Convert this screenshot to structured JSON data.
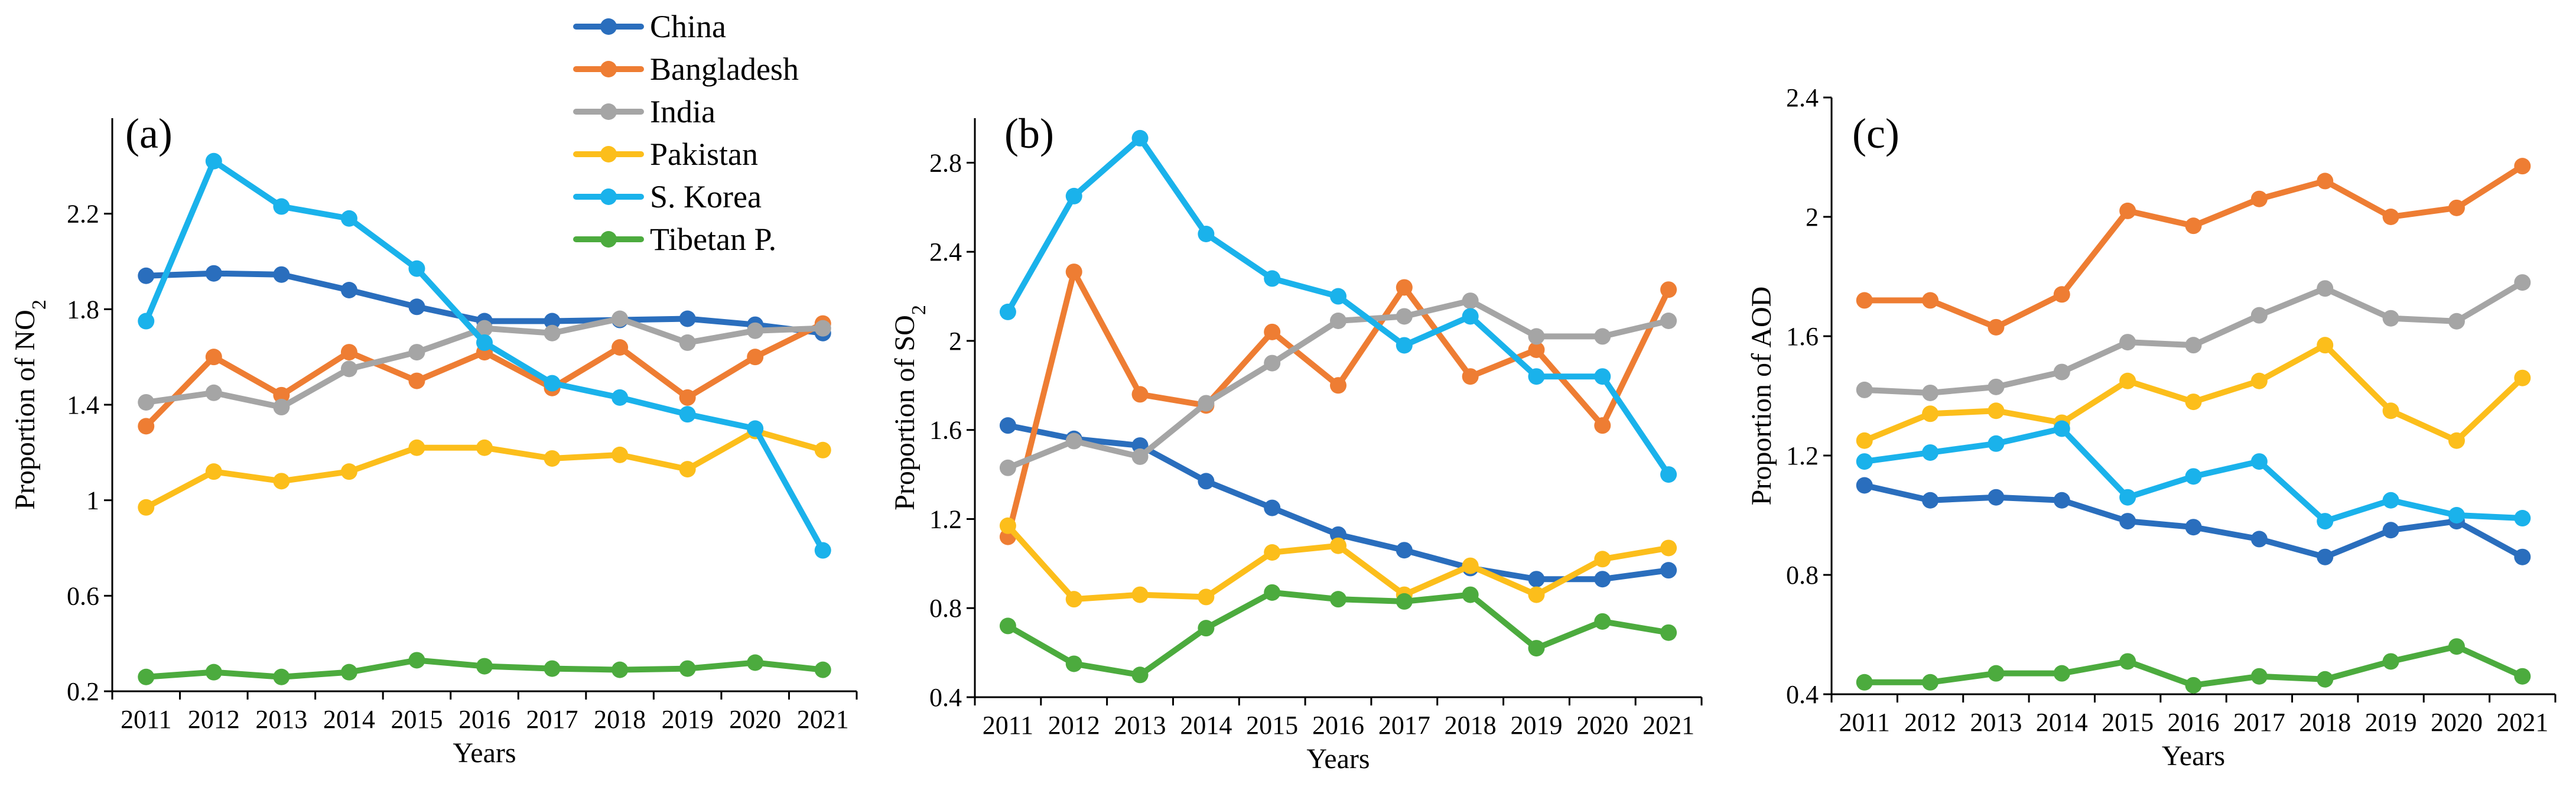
{
  "legend": {
    "placement": "top-center",
    "entries": [
      {
        "name": "China",
        "color": "#2a6ebd"
      },
      {
        "name": "Bangladesh",
        "color": "#ee7d33"
      },
      {
        "name": "India",
        "color": "#a5a5a5"
      },
      {
        "name": "Pakistan",
        "color": "#fcbe1b"
      },
      {
        "name": "S. Korea",
        "color": "#1ab2eb"
      },
      {
        "name": "Tibetan P.",
        "color": "#4cab3e"
      }
    ]
  },
  "chart_data": [
    {
      "type": "line",
      "panel_label": "(a)",
      "xlabel": "Years",
      "ylabel": "Proportion of NO",
      "ylabel_sub": "2",
      "ylim": [
        0.2,
        2.6
      ],
      "yticks": [
        0.2,
        0.6,
        1,
        1.4,
        1.8,
        2.2
      ],
      "ytick_labels": [
        "0.2",
        "0.6",
        "1",
        "1.4",
        "1.8",
        "2.2"
      ],
      "categories": [
        "2011",
        "2012",
        "2013",
        "2014",
        "2015",
        "2016",
        "2017",
        "2018",
        "2019",
        "2020",
        "2021"
      ],
      "series": [
        {
          "name": "China",
          "values": [
            1.94,
            1.95,
            1.945,
            1.88,
            1.81,
            1.75,
            1.75,
            1.755,
            1.76,
            1.735,
            1.7
          ]
        },
        {
          "name": "Bangladesh",
          "values": [
            1.31,
            1.6,
            1.44,
            1.62,
            1.5,
            1.62,
            1.47,
            1.64,
            1.43,
            1.6,
            1.74
          ]
        },
        {
          "name": "India",
          "values": [
            1.41,
            1.45,
            1.39,
            1.55,
            1.62,
            1.72,
            1.7,
            1.76,
            1.66,
            1.71,
            1.72
          ]
        },
        {
          "name": "Pakistan",
          "values": [
            0.97,
            1.12,
            1.08,
            1.12,
            1.22,
            1.22,
            1.175,
            1.19,
            1.13,
            1.29,
            1.21
          ]
        },
        {
          "name": "S. Korea",
          "values": [
            1.75,
            2.42,
            2.23,
            2.18,
            1.97,
            1.66,
            1.49,
            1.43,
            1.36,
            1.3,
            0.79
          ]
        },
        {
          "name": "Tibetan P.",
          "values": [
            0.26,
            0.28,
            0.26,
            0.28,
            0.33,
            0.305,
            0.295,
            0.29,
            0.295,
            0.32,
            0.29
          ]
        }
      ]
    },
    {
      "type": "line",
      "panel_label": "(b)",
      "xlabel": "Years",
      "ylabel": "Proportion of SO",
      "ylabel_sub": "2",
      "ylim": [
        0.4,
        3.0
      ],
      "yticks": [
        0.4,
        0.8,
        1.2,
        1.6,
        2.0,
        2.4,
        2.8
      ],
      "ytick_labels": [
        "0.4",
        "0.8",
        "1.2",
        "1.6",
        "2",
        "2.4",
        "2.8"
      ],
      "categories": [
        "2011",
        "2012",
        "2013",
        "2014",
        "2015",
        "2016",
        "2017",
        "2018",
        "2019",
        "2020",
        "2021"
      ],
      "series": [
        {
          "name": "China",
          "values": [
            1.62,
            1.56,
            1.53,
            1.37,
            1.25,
            1.13,
            1.06,
            0.98,
            0.93,
            0.93,
            0.97
          ]
        },
        {
          "name": "Bangladesh",
          "values": [
            1.12,
            2.31,
            1.76,
            1.71,
            2.04,
            1.8,
            2.24,
            1.84,
            1.96,
            1.62,
            2.23
          ]
        },
        {
          "name": "India",
          "values": [
            1.43,
            1.55,
            1.48,
            1.72,
            1.9,
            2.09,
            2.11,
            2.18,
            2.02,
            2.02,
            2.09
          ]
        },
        {
          "name": "Pakistan",
          "values": [
            1.17,
            0.84,
            0.86,
            0.85,
            1.05,
            1.08,
            0.86,
            0.99,
            0.86,
            1.02,
            1.07
          ]
        },
        {
          "name": "S. Korea",
          "values": [
            2.13,
            2.65,
            2.91,
            2.48,
            2.28,
            2.2,
            1.98,
            2.11,
            1.84,
            1.84,
            1.4
          ]
        },
        {
          "name": "Tibetan P.",
          "values": [
            0.72,
            0.55,
            0.5,
            0.71,
            0.87,
            0.84,
            0.83,
            0.86,
            0.62,
            0.74,
            0.69
          ]
        }
      ]
    },
    {
      "type": "line",
      "panel_label": "(c)",
      "xlabel": "Years",
      "ylabel": "Proportion of AOD",
      "ylabel_sub": "",
      "ylim": [
        0.4,
        2.4
      ],
      "yticks": [
        0.4,
        0.8,
        1.2,
        1.6,
        2.0,
        2.4
      ],
      "ytick_labels": [
        "0.4",
        "0.8",
        "1.2",
        "1.6",
        "2",
        "2.4"
      ],
      "categories": [
        "2011",
        "2012",
        "2013",
        "2014",
        "2015",
        "2016",
        "2017",
        "2018",
        "2019",
        "2020",
        "2021"
      ],
      "series": [
        {
          "name": "China",
          "values": [
            1.1,
            1.05,
            1.06,
            1.05,
            0.98,
            0.96,
            0.92,
            0.86,
            0.95,
            0.98,
            0.86
          ]
        },
        {
          "name": "Bangladesh",
          "values": [
            1.72,
            1.72,
            1.63,
            1.74,
            2.02,
            1.97,
            2.06,
            2.12,
            2.0,
            2.03,
            2.17
          ]
        },
        {
          "name": "India",
          "values": [
            1.42,
            1.41,
            1.43,
            1.48,
            1.58,
            1.57,
            1.67,
            1.76,
            1.66,
            1.65,
            1.78
          ]
        },
        {
          "name": "Pakistan",
          "values": [
            1.25,
            1.34,
            1.35,
            1.31,
            1.45,
            1.38,
            1.45,
            1.57,
            1.35,
            1.25,
            1.46
          ]
        },
        {
          "name": "S. Korea",
          "values": [
            1.18,
            1.21,
            1.24,
            1.29,
            1.06,
            1.13,
            1.18,
            0.98,
            1.05,
            1.0,
            0.99
          ]
        },
        {
          "name": "Tibetan P.",
          "values": [
            0.44,
            0.44,
            0.47,
            0.47,
            0.51,
            0.43,
            0.46,
            0.45,
            0.51,
            0.56,
            0.46
          ]
        }
      ]
    }
  ]
}
